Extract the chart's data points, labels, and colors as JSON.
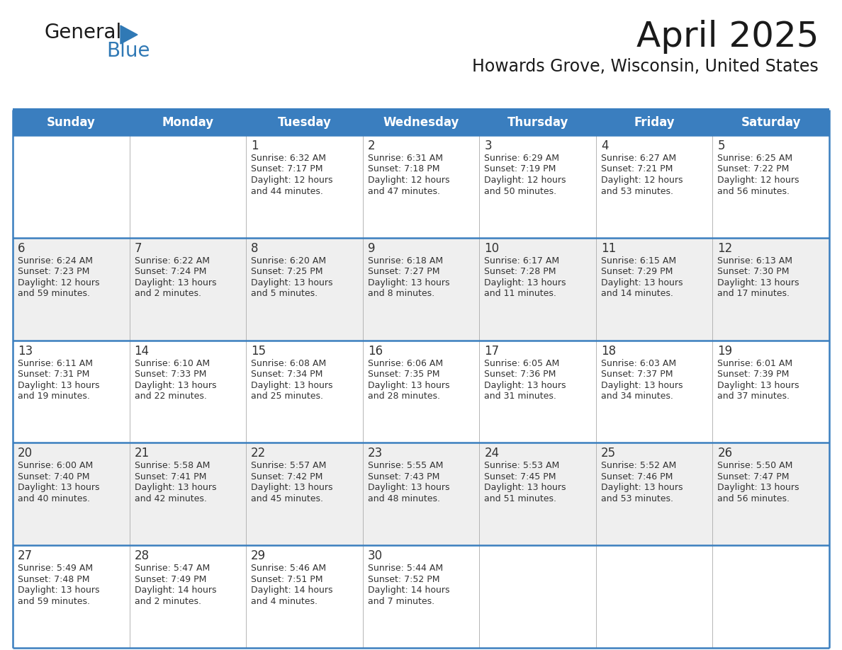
{
  "title": "April 2025",
  "subtitle": "Howards Grove, Wisconsin, United States",
  "header_bg_color": "#3A7EBF",
  "header_text_color": "#FFFFFF",
  "row_colors": [
    "#FFFFFF",
    "#EFEFEF"
  ],
  "border_color": "#3A7EBF",
  "separator_color": "#AAAAAA",
  "text_color": "#333333",
  "days_of_week": [
    "Sunday",
    "Monday",
    "Tuesday",
    "Wednesday",
    "Thursday",
    "Friday",
    "Saturday"
  ],
  "calendar_data": [
    [
      {
        "day": "",
        "lines": []
      },
      {
        "day": "",
        "lines": []
      },
      {
        "day": "1",
        "lines": [
          "Sunrise: 6:32 AM",
          "Sunset: 7:17 PM",
          "Daylight: 12 hours",
          "and 44 minutes."
        ]
      },
      {
        "day": "2",
        "lines": [
          "Sunrise: 6:31 AM",
          "Sunset: 7:18 PM",
          "Daylight: 12 hours",
          "and 47 minutes."
        ]
      },
      {
        "day": "3",
        "lines": [
          "Sunrise: 6:29 AM",
          "Sunset: 7:19 PM",
          "Daylight: 12 hours",
          "and 50 minutes."
        ]
      },
      {
        "day": "4",
        "lines": [
          "Sunrise: 6:27 AM",
          "Sunset: 7:21 PM",
          "Daylight: 12 hours",
          "and 53 minutes."
        ]
      },
      {
        "day": "5",
        "lines": [
          "Sunrise: 6:25 AM",
          "Sunset: 7:22 PM",
          "Daylight: 12 hours",
          "and 56 minutes."
        ]
      }
    ],
    [
      {
        "day": "6",
        "lines": [
          "Sunrise: 6:24 AM",
          "Sunset: 7:23 PM",
          "Daylight: 12 hours",
          "and 59 minutes."
        ]
      },
      {
        "day": "7",
        "lines": [
          "Sunrise: 6:22 AM",
          "Sunset: 7:24 PM",
          "Daylight: 13 hours",
          "and 2 minutes."
        ]
      },
      {
        "day": "8",
        "lines": [
          "Sunrise: 6:20 AM",
          "Sunset: 7:25 PM",
          "Daylight: 13 hours",
          "and 5 minutes."
        ]
      },
      {
        "day": "9",
        "lines": [
          "Sunrise: 6:18 AM",
          "Sunset: 7:27 PM",
          "Daylight: 13 hours",
          "and 8 minutes."
        ]
      },
      {
        "day": "10",
        "lines": [
          "Sunrise: 6:17 AM",
          "Sunset: 7:28 PM",
          "Daylight: 13 hours",
          "and 11 minutes."
        ]
      },
      {
        "day": "11",
        "lines": [
          "Sunrise: 6:15 AM",
          "Sunset: 7:29 PM",
          "Daylight: 13 hours",
          "and 14 minutes."
        ]
      },
      {
        "day": "12",
        "lines": [
          "Sunrise: 6:13 AM",
          "Sunset: 7:30 PM",
          "Daylight: 13 hours",
          "and 17 minutes."
        ]
      }
    ],
    [
      {
        "day": "13",
        "lines": [
          "Sunrise: 6:11 AM",
          "Sunset: 7:31 PM",
          "Daylight: 13 hours",
          "and 19 minutes."
        ]
      },
      {
        "day": "14",
        "lines": [
          "Sunrise: 6:10 AM",
          "Sunset: 7:33 PM",
          "Daylight: 13 hours",
          "and 22 minutes."
        ]
      },
      {
        "day": "15",
        "lines": [
          "Sunrise: 6:08 AM",
          "Sunset: 7:34 PM",
          "Daylight: 13 hours",
          "and 25 minutes."
        ]
      },
      {
        "day": "16",
        "lines": [
          "Sunrise: 6:06 AM",
          "Sunset: 7:35 PM",
          "Daylight: 13 hours",
          "and 28 minutes."
        ]
      },
      {
        "day": "17",
        "lines": [
          "Sunrise: 6:05 AM",
          "Sunset: 7:36 PM",
          "Daylight: 13 hours",
          "and 31 minutes."
        ]
      },
      {
        "day": "18",
        "lines": [
          "Sunrise: 6:03 AM",
          "Sunset: 7:37 PM",
          "Daylight: 13 hours",
          "and 34 minutes."
        ]
      },
      {
        "day": "19",
        "lines": [
          "Sunrise: 6:01 AM",
          "Sunset: 7:39 PM",
          "Daylight: 13 hours",
          "and 37 minutes."
        ]
      }
    ],
    [
      {
        "day": "20",
        "lines": [
          "Sunrise: 6:00 AM",
          "Sunset: 7:40 PM",
          "Daylight: 13 hours",
          "and 40 minutes."
        ]
      },
      {
        "day": "21",
        "lines": [
          "Sunrise: 5:58 AM",
          "Sunset: 7:41 PM",
          "Daylight: 13 hours",
          "and 42 minutes."
        ]
      },
      {
        "day": "22",
        "lines": [
          "Sunrise: 5:57 AM",
          "Sunset: 7:42 PM",
          "Daylight: 13 hours",
          "and 45 minutes."
        ]
      },
      {
        "day": "23",
        "lines": [
          "Sunrise: 5:55 AM",
          "Sunset: 7:43 PM",
          "Daylight: 13 hours",
          "and 48 minutes."
        ]
      },
      {
        "day": "24",
        "lines": [
          "Sunrise: 5:53 AM",
          "Sunset: 7:45 PM",
          "Daylight: 13 hours",
          "and 51 minutes."
        ]
      },
      {
        "day": "25",
        "lines": [
          "Sunrise: 5:52 AM",
          "Sunset: 7:46 PM",
          "Daylight: 13 hours",
          "and 53 minutes."
        ]
      },
      {
        "day": "26",
        "lines": [
          "Sunrise: 5:50 AM",
          "Sunset: 7:47 PM",
          "Daylight: 13 hours",
          "and 56 minutes."
        ]
      }
    ],
    [
      {
        "day": "27",
        "lines": [
          "Sunrise: 5:49 AM",
          "Sunset: 7:48 PM",
          "Daylight: 13 hours",
          "and 59 minutes."
        ]
      },
      {
        "day": "28",
        "lines": [
          "Sunrise: 5:47 AM",
          "Sunset: 7:49 PM",
          "Daylight: 14 hours",
          "and 2 minutes."
        ]
      },
      {
        "day": "29",
        "lines": [
          "Sunrise: 5:46 AM",
          "Sunset: 7:51 PM",
          "Daylight: 14 hours",
          "and 4 minutes."
        ]
      },
      {
        "day": "30",
        "lines": [
          "Sunrise: 5:44 AM",
          "Sunset: 7:52 PM",
          "Daylight: 14 hours",
          "and 7 minutes."
        ]
      },
      {
        "day": "",
        "lines": []
      },
      {
        "day": "",
        "lines": []
      },
      {
        "day": "",
        "lines": []
      }
    ]
  ],
  "logo_text_general": "General",
  "logo_text_blue": "Blue",
  "logo_color_general": "#1a1a1a",
  "logo_color_blue": "#3079B5",
  "logo_triangle_color": "#3079B5",
  "title_fontsize": 36,
  "subtitle_fontsize": 17,
  "header_fontsize": 12,
  "day_num_fontsize": 12,
  "cell_text_fontsize": 9,
  "logo_fontsize_general": 20,
  "logo_fontsize_blue": 20
}
